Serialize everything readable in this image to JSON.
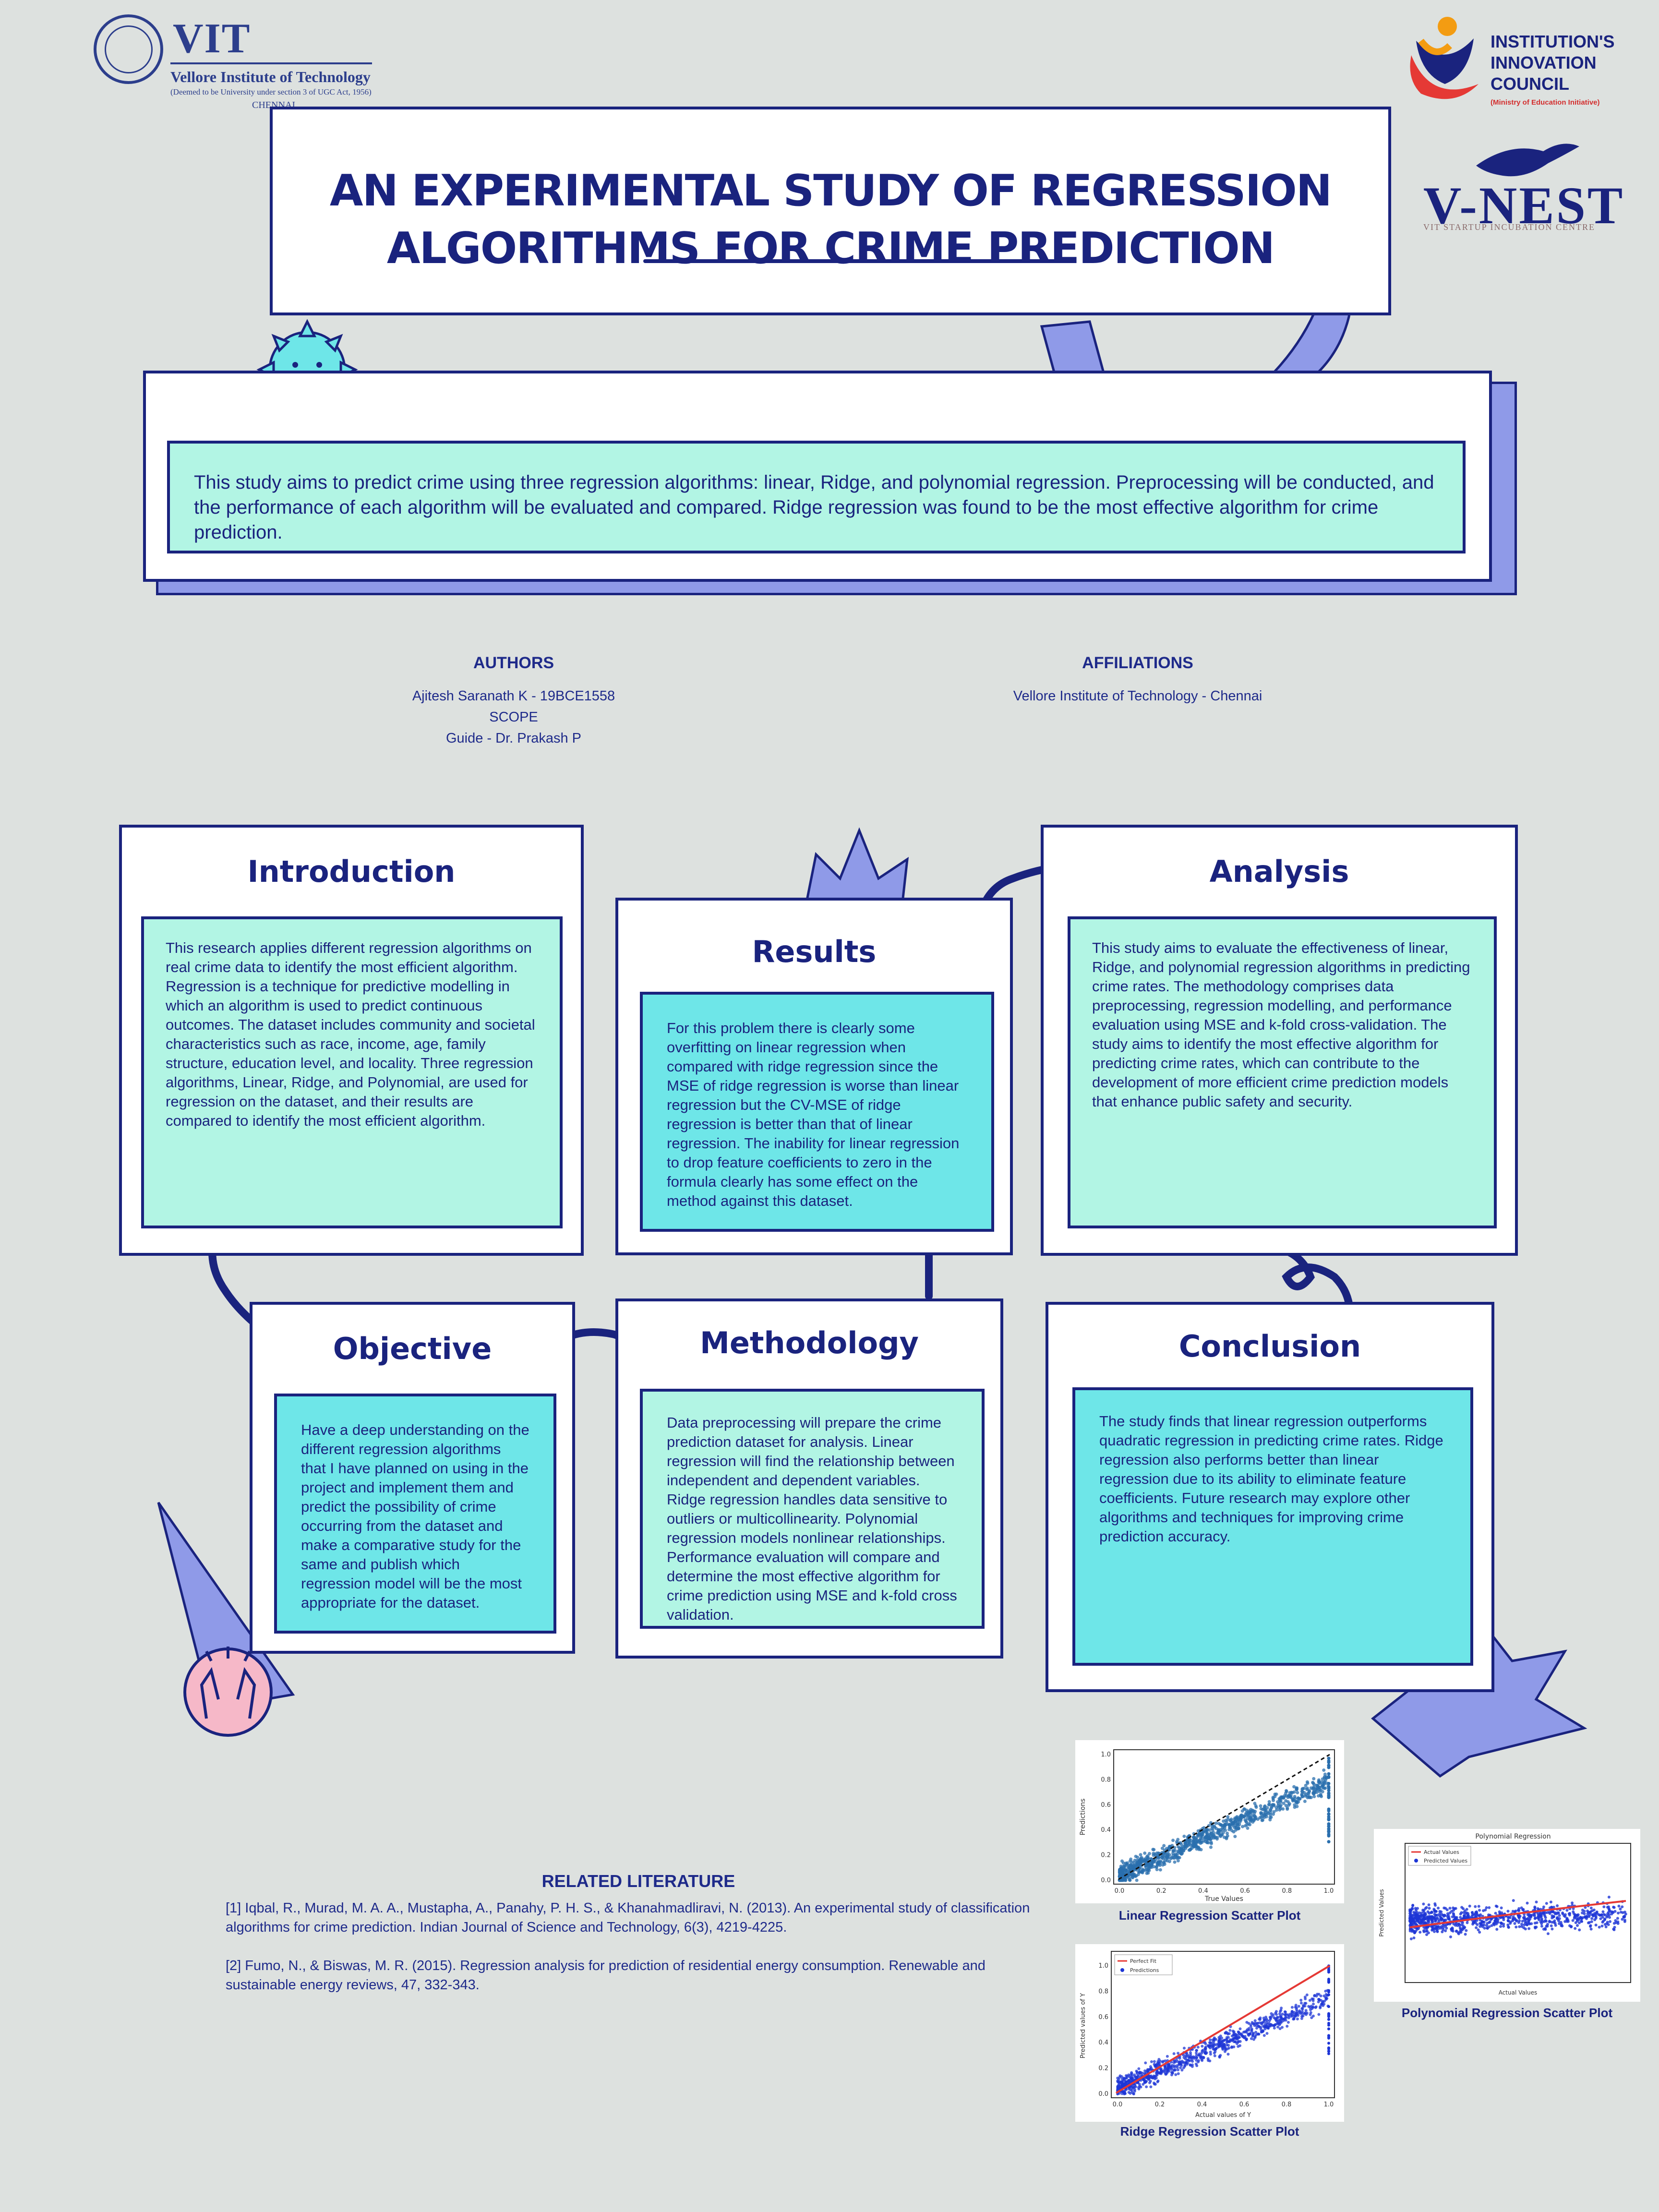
{
  "logos": {
    "vit": {
      "name": "VIT",
      "full": "Vellore Institute of Technology",
      "deemed": "(Deemed to be University under section 3 of UGC Act, 1956)",
      "city": "CHENNAI"
    },
    "iic": {
      "line1": "INSTITUTION'S",
      "line2": "INNOVATION",
      "line3": "COUNCIL",
      "sub": "(Ministry of Education Initiative)"
    },
    "vnest": {
      "name": "V-NEST",
      "sub": "VIT STARTUP INCUBATION CENTRE"
    }
  },
  "title": {
    "line1": "AN EXPERIMENTAL STUDY OF REGRESSION",
    "line2": "ALGORITHMS FOR CRIME PREDICTION"
  },
  "abstract": "This study aims to predict crime using three regression algorithms: linear, Ridge, and polynomial regression. Preprocessing will be conducted, and the performance of each algorithm will be evaluated and compared. Ridge regression was found to be the most effective algorithm for crime prediction.",
  "authors": {
    "heading": "AUTHORS",
    "line1": "Ajitesh Saranath K - 19BCE1558",
    "line2": "SCOPE",
    "line3": "Guide - Dr. Prakash P"
  },
  "affiliations": {
    "heading": "AFFILIATIONS",
    "line1": "Vellore Institute of Technology - Chennai"
  },
  "sections": {
    "introduction": {
      "title": "Introduction",
      "body": "This research applies different regression algorithms on real crime data to identify the most efficient algorithm. Regression is a technique for predictive modelling in which an algorithm is used to predict continuous outcomes. The dataset includes community and societal characteristics such as race, income, age, family structure, education level, and locality. Three regression algorithms, Linear, Ridge, and Polynomial, are used for regression on the dataset, and their results are compared to identify the most efficient algorithm."
    },
    "results": {
      "title": "Results",
      "body": "For this problem there is clearly some overfitting on linear regression when compared with ridge regression since the MSE of ridge regression is worse than linear regression but the CV-MSE of ridge regression is better than that of linear regression. The inability for linear regression to drop feature coefficients to zero in the formula clearly has some effect on the method against this dataset."
    },
    "analysis": {
      "title": "Analysis",
      "body": "This study aims to evaluate the effectiveness of linear, Ridge, and polynomial regression algorithms in predicting crime rates. The methodology comprises data preprocessing, regression modelling, and performance evaluation using MSE and k-fold cross-validation. The study aims to identify the most effective algorithm for predicting crime rates, which can contribute to the development of more efficient crime prediction models that enhance public safety and security."
    },
    "objective": {
      "title": "Objective",
      "body": "Have a deep understanding on the different regression algorithms that I have planned on using in the project and implement them and predict the possibility of crime occurring from the dataset and make a comparative study for the same and publish which regression model will be the most appropriate for the dataset."
    },
    "methodology": {
      "title": "Methodology",
      "body": "Data preprocessing will prepare the crime prediction dataset for analysis. Linear regression will find the relationship between independent and dependent variables. Ridge regression handles data sensitive to outliers or multicollinearity. Polynomial regression models nonlinear relationships. Performance evaluation will compare and determine the most effective algorithm for crime prediction using MSE and k-fold cross validation."
    },
    "conclusion": {
      "title": "Conclusion",
      "body": "The study finds that linear regression outperforms quadratic regression in predicting crime rates. Ridge regression also performs better than linear regression due to its ability to eliminate feature coefficients. Future research may explore other algorithms and techniques for improving crime prediction accuracy."
    }
  },
  "related": {
    "heading": "RELATED LITERATURE",
    "ref1": "[1] Iqbal, R., Murad, M. A. A., Mustapha, A., Panahy, P. H. S., & Khanahmadliravi, N. (2013). An experimental study of classification algorithms for crime prediction. Indian Journal of Science and Technology, 6(3), 4219-4225.",
    "ref2": "[2] Fumo, N., & Biswas, M. R. (2015). Regression analysis for prediction of residential energy consumption. Renewable and sustainable energy reviews, 47, 332-343."
  },
  "plots": {
    "linear": {
      "caption": "Linear Regression Scatter Plot",
      "xlabel": "True Values",
      "ylabel": "Predictions",
      "ticks": [
        "0.0",
        "0.2",
        "0.4",
        "0.6",
        "0.8",
        "1.0"
      ]
    },
    "polynomial": {
      "caption": "Polynomial Regression Scatter Plot",
      "title": "Polynomial Regression",
      "legend1": "Actual Values",
      "legend2": "Predicted Values",
      "xlabel": "Actual Values",
      "ylabel": "Predicted Values"
    },
    "ridge": {
      "caption": "Ridge Regression Scatter Plot",
      "legend1": "Perfect Fit",
      "legend2": "Predictions",
      "xlabel": "Actual values of Y",
      "ylabel": "Predicted values of Y",
      "ticks": [
        "0.0",
        "0.2",
        "0.4",
        "0.6",
        "0.8",
        "1.0"
      ]
    }
  },
  "colors": {
    "navy": "#1a237e",
    "mint": "#b2f5e4",
    "cyan": "#6ee6e8",
    "periwinkle": "#8f9ae8",
    "background": "#dde1df"
  }
}
